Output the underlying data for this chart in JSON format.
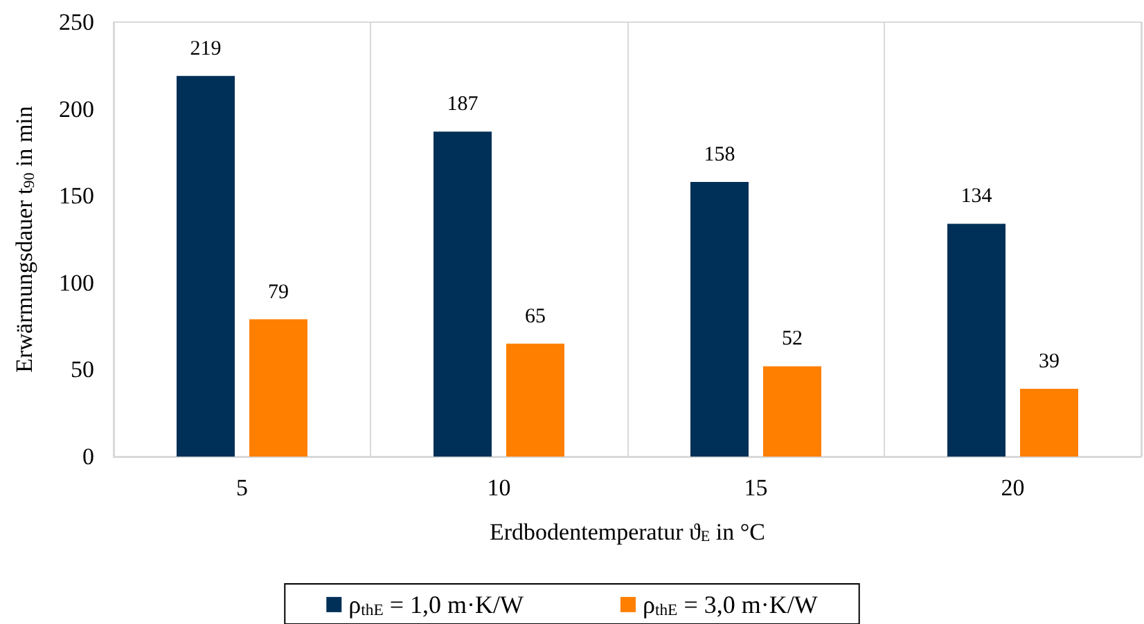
{
  "chart_data": {
    "type": "bar",
    "xlabel": "Erdbodentemperatur ϑ$_{E}$ in °C",
    "ylabel": "Erwärmungsdauer t$_{90}$ in min",
    "categories": [
      "5",
      "10",
      "15",
      "20"
    ],
    "series": [
      {
        "name": "ρ$_{thE}$ = 1,0 m·K/W",
        "color": "#003057",
        "values": [
          219,
          187,
          158,
          134
        ]
      },
      {
        "name": "ρ$_{thE}$ = 3,0 m·K/W",
        "color": "#ff7f00",
        "values": [
          79,
          65,
          52,
          39
        ]
      }
    ],
    "ylim": [
      0,
      250
    ],
    "yticks": [
      0,
      50,
      100,
      150,
      200,
      250
    ],
    "grid": "x",
    "legend": "bottom",
    "data_labels": true
  }
}
